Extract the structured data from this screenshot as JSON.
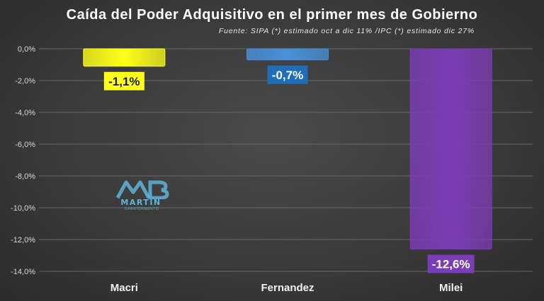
{
  "title": "Caída del Poder Adquisitivo en el primer mes de Gobierno",
  "subtitle": "Fuente: SIPA (*) estimado oct a dic 11% /IPC (*) estimado dic 27%",
  "watermark": {
    "text": "MARTIN",
    "subtext": "GARRIORMENTO"
  },
  "colors": {
    "background": "#3a3a3a",
    "grid": "#6a6a6a",
    "axis_text": "#d8d8d8"
  },
  "chart_data": {
    "type": "bar",
    "categories": [
      "Macri",
      "Fernandez",
      "Milei"
    ],
    "values": [
      -1.1,
      -0.7,
      -12.6
    ],
    "data_labels": [
      "-1,1%",
      "-0,7%",
      "-12,6%"
    ],
    "bar_colors": [
      "#ffff1a",
      "#4a90d9",
      "#7b3db5"
    ],
    "label_colors": [
      "#ffff1a",
      "#1e6fb8",
      "#7b3db5"
    ],
    "label_text_colors": [
      "#1a1a1a",
      "#ffffff",
      "#ffffff"
    ],
    "ylim": [
      -14,
      0
    ],
    "yticks": [
      0,
      -2,
      -4,
      -6,
      -8,
      -10,
      -12,
      -14
    ],
    "ytick_labels": [
      "0,0%",
      "-2,0%",
      "-4,0%",
      "-6,0%",
      "-8,0%",
      "-10,0%",
      "-12,0%",
      "-14,0%"
    ],
    "grid": true
  }
}
